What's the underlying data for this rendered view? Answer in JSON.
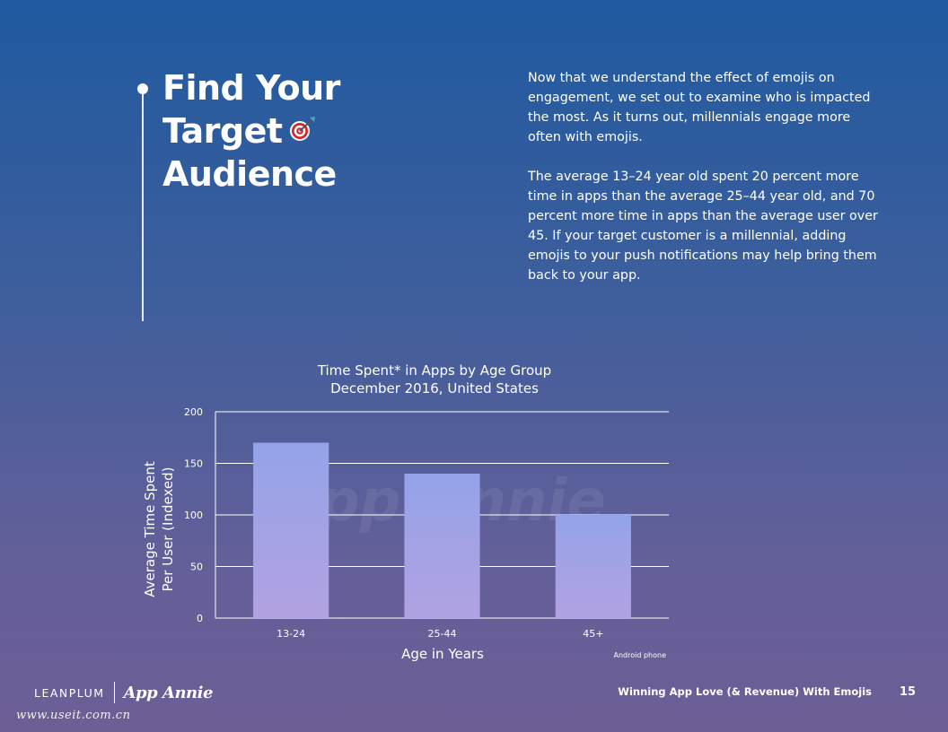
{
  "heading": {
    "lines": [
      "Find Your",
      "Target",
      "Audience"
    ],
    "icon": "target-dart-icon"
  },
  "body": {
    "paragraph1": "Now that we understand the effect of emojis on engagement, we set out to examine who is impacted the most. As it turns out, millennials engage more often with emojis.",
    "paragraph2": "The average 13–24 year old spent 20 percent more time in apps than the average 25–44 year old, and 70 percent more time in apps than the average user over 45. If your target customer is a millennial, adding emojis to your push notifications may help bring them back to your app."
  },
  "chart_data": {
    "type": "bar",
    "title": "Time Spent* in Apps by Age Group",
    "subtitle": "December 2016, United States",
    "categories": [
      "13-24",
      "25-44",
      "45+"
    ],
    "values": [
      170,
      140,
      100
    ],
    "xlabel": "Age in Years",
    "ylabel_lines": [
      "Average Time Spent",
      "Per User (Indexed)"
    ],
    "ylim": [
      0,
      200
    ],
    "yticks": [
      0,
      50,
      100,
      150,
      200
    ],
    "grid": true,
    "note": "Android phone",
    "watermark": "App Annie",
    "bar_color_top": "#94a3e8",
    "bar_color_bottom": "#b2a2e2"
  },
  "footer": {
    "brand_left": "LEANPLUM",
    "brand_right": "App Annie",
    "doc_title": "Winning App Love (& Revenue) With Emojis",
    "page": "15",
    "site": "www.useit.com.cn"
  }
}
